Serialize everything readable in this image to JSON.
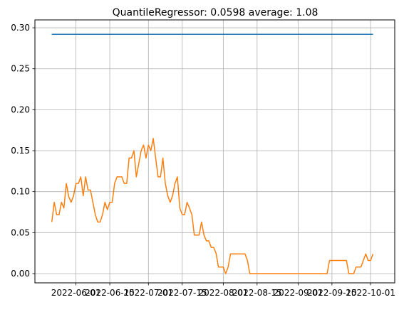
{
  "chart_data": {
    "type": "line",
    "title": "QuantileRegressor: 0.0598 average: 1.08",
    "grid": true,
    "ylim": [
      -0.0113,
      0.3096
    ],
    "yticks": [
      {
        "value": 0,
        "label": "0.00"
      },
      0.05,
      {
        "value": 0.1,
        "label": "0.10"
      },
      0.15,
      {
        "value": 0.2,
        "label": "0.20"
      },
      0.25,
      {
        "value": 0.3,
        "label": "0.30"
      }
    ],
    "xlim": [
      "2022-05-15",
      "2022-10-11"
    ],
    "xticks": [
      "2022-06-01",
      "2022-06-15",
      "2022-07-01",
      "2022-07-15",
      "2022-08-01",
      "2022-08-15",
      "2022-09-01",
      "2022-09-15",
      "2022-10-01"
    ],
    "series": [
      {
        "color": "#1f77b4",
        "x": [
          "2022-05-22",
          "2022-10-02"
        ],
        "values": [
          0.292,
          0.292
        ]
      },
      {
        "color": "#ff7f0e",
        "x": [
          "2022-05-22",
          "2022-05-23",
          "2022-05-24",
          "2022-05-25",
          "2022-05-26",
          "2022-05-27",
          "2022-05-28",
          "2022-05-29",
          "2022-05-30",
          "2022-05-31",
          "2022-06-01",
          "2022-06-02",
          "2022-06-03",
          "2022-06-04",
          "2022-06-05",
          "2022-06-06",
          "2022-06-07",
          "2022-06-08",
          "2022-06-09",
          "2022-06-10",
          "2022-06-11",
          "2022-06-12",
          "2022-06-13",
          "2022-06-14",
          "2022-06-15",
          "2022-06-16",
          "2022-06-17",
          "2022-06-18",
          "2022-06-19",
          "2022-06-20",
          "2022-06-21",
          "2022-06-22",
          "2022-06-23",
          "2022-06-24",
          "2022-06-25",
          "2022-06-26",
          "2022-06-27",
          "2022-06-28",
          "2022-06-29",
          "2022-06-30",
          "2022-07-01",
          "2022-07-02",
          "2022-07-03",
          "2022-07-04",
          "2022-07-05",
          "2022-07-06",
          "2022-07-07",
          "2022-07-08",
          "2022-07-09",
          "2022-07-10",
          "2022-07-11",
          "2022-07-12",
          "2022-07-13",
          "2022-07-14",
          "2022-07-15",
          "2022-07-16",
          "2022-07-17",
          "2022-07-18",
          "2022-07-19",
          "2022-07-20",
          "2022-07-21",
          "2022-07-22",
          "2022-07-23",
          "2022-07-24",
          "2022-07-25",
          "2022-07-26",
          "2022-07-27",
          "2022-07-28",
          "2022-07-29",
          "2022-07-30",
          "2022-07-31",
          "2022-08-01",
          "2022-08-02",
          "2022-08-03",
          "2022-08-04",
          "2022-08-10",
          "2022-08-11",
          "2022-08-12",
          "2022-09-13",
          "2022-09-14",
          "2022-09-21",
          "2022-09-22",
          "2022-09-24",
          "2022-09-25",
          "2022-09-27",
          "2022-09-28",
          "2022-09-29",
          "2022-09-30",
          "2022-10-01",
          "2022-10-02"
        ],
        "values": [
          0.063,
          0.087,
          0.072,
          0.072,
          0.087,
          0.08,
          0.11,
          0.094,
          0.087,
          0.095,
          0.11,
          0.11,
          0.118,
          0.095,
          0.118,
          0.102,
          0.102,
          0.087,
          0.072,
          0.063,
          0.063,
          0.072,
          0.087,
          0.078,
          0.087,
          0.087,
          0.11,
          0.118,
          0.118,
          0.118,
          0.11,
          0.11,
          0.141,
          0.141,
          0.15,
          0.118,
          0.134,
          0.15,
          0.157,
          0.141,
          0.157,
          0.15,
          0.165,
          0.141,
          0.118,
          0.118,
          0.141,
          0.11,
          0.095,
          0.087,
          0.095,
          0.11,
          0.118,
          0.08,
          0.072,
          0.072,
          0.087,
          0.08,
          0.072,
          0.047,
          0.047,
          0.047,
          0.063,
          0.047,
          0.04,
          0.04,
          0.032,
          0.032,
          0.025,
          0.008,
          0.008,
          0.008,
          0,
          0.008,
          0.024,
          0.024,
          0.016,
          0,
          0,
          0.016,
          0.016,
          0,
          0,
          0.008,
          0.008,
          0.016,
          0.024,
          0.016,
          0.016,
          0.024
        ]
      }
    ]
  }
}
